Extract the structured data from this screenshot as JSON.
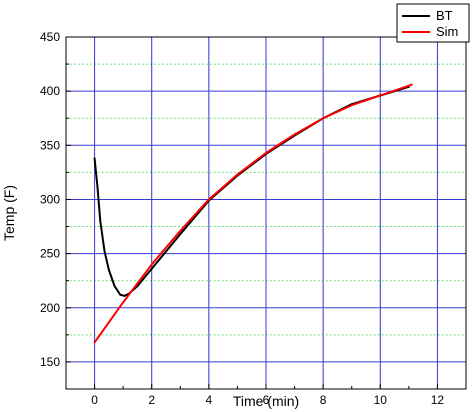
{
  "chart_data": {
    "type": "line",
    "title": "",
    "xlabel": "Time (min)",
    "ylabel": "Temp (F)",
    "xlim": [
      -1,
      13
    ],
    "ylim": [
      125,
      450
    ],
    "x_ticks": [
      0,
      2,
      4,
      6,
      8,
      10,
      12
    ],
    "y_ticks": [
      150,
      200,
      250,
      300,
      350,
      400,
      450
    ],
    "x_tick_labels": [
      "0",
      "2",
      "4",
      "6",
      "8",
      "10",
      "12"
    ],
    "y_tick_labels": [
      "150",
      "200",
      "250",
      "300",
      "350",
      "400",
      "450"
    ],
    "grid": {
      "major": true,
      "minor": true,
      "major_color": "#3a3ad8",
      "minor_color": "#39d84a"
    },
    "legend": {
      "position": "top-right",
      "entries": [
        "BT",
        "Sim"
      ]
    },
    "series": [
      {
        "name": "BT",
        "color": "#000000",
        "x": [
          0,
          0.1,
          0.2,
          0.35,
          0.5,
          0.7,
          0.9,
          1.05,
          1.2,
          1.5,
          2,
          3,
          4,
          5,
          6,
          7,
          8,
          9,
          10,
          11
        ],
        "y": [
          338,
          312,
          280,
          252,
          235,
          220,
          212,
          211,
          213,
          220,
          236,
          268,
          299,
          322,
          342,
          359,
          375,
          388,
          396,
          404
        ]
      },
      {
        "name": "Sim",
        "color": "#ff0000",
        "x": [
          0,
          1,
          2,
          3,
          4,
          5,
          6,
          7,
          8,
          9,
          10,
          11.1
        ],
        "y": [
          168,
          205,
          240,
          271,
          300,
          323,
          343,
          360,
          375,
          387,
          396,
          406
        ]
      }
    ]
  }
}
